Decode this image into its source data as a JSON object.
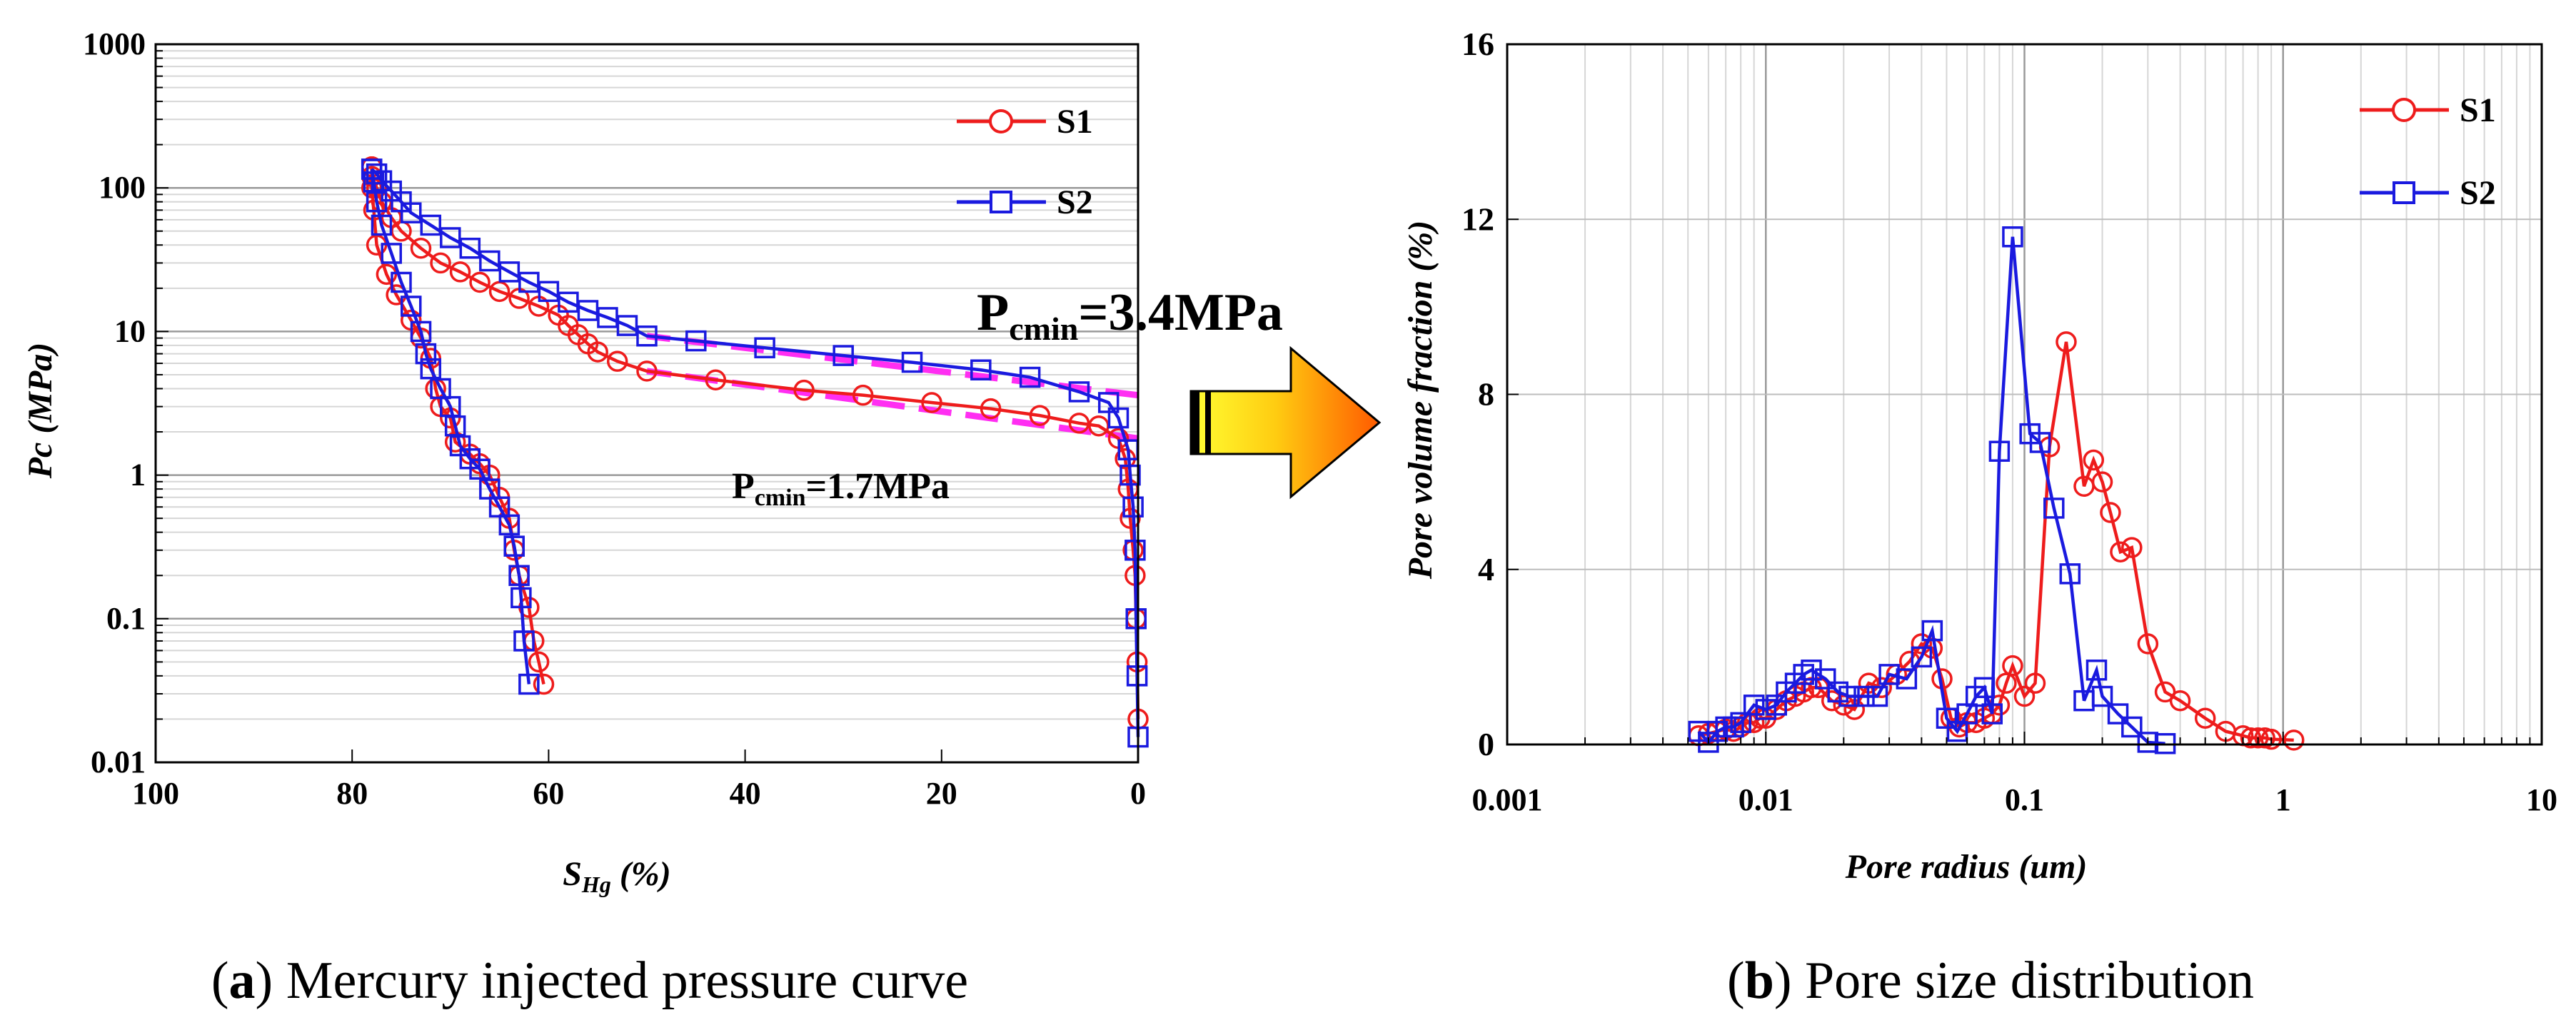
{
  "colors": {
    "s1": "#ee1c1c",
    "s2": "#1a1adf",
    "dash": "#ff2ef2",
    "axis": "#000000"
  },
  "panels": {
    "a": {
      "caption_letter": "a",
      "caption": " Mercury injected pressure curve"
    },
    "b": {
      "caption_letter": "b",
      "caption": " Pore size distribution"
    }
  },
  "annotations": {
    "pcmin_s2": {
      "main": "P",
      "sub": "cmin",
      "value": "=3.4MPa"
    },
    "pcmin_s1": {
      "main": "P",
      "sub": "cmin",
      "value": "=1.7MPa"
    },
    "arrow": "arrow-right-icon"
  },
  "chart_data": [
    {
      "type": "line",
      "xlabel": {
        "main": "S",
        "sub": "Hg",
        "unit": " (%)"
      },
      "ylabel": "Pc (MPa)",
      "xlim": [
        100,
        0
      ],
      "ylim": [
        0.01,
        1000
      ],
      "yscale": "log",
      "grid": true,
      "legend": "top-right",
      "xticks": [
        "100",
        "80",
        "60",
        "40",
        "20",
        "0"
      ],
      "yticks": [
        "0.01",
        "0.1",
        "1",
        "10",
        "100",
        "1000"
      ],
      "series": [
        {
          "name": "S1",
          "marker": "circle",
          "injection": [
            [
              0,
              0.02
            ],
            [
              0.1,
              0.05
            ],
            [
              0.2,
              0.1
            ],
            [
              0.3,
              0.2
            ],
            [
              0.5,
              0.3
            ],
            [
              0.8,
              0.5
            ],
            [
              1,
              0.8
            ],
            [
              1.3,
              1.3
            ],
            [
              2,
              1.8
            ],
            [
              4,
              2.2
            ],
            [
              6,
              2.3
            ],
            [
              10,
              2.6
            ],
            [
              15,
              2.9
            ],
            [
              21,
              3.2
            ],
            [
              28,
              3.6
            ],
            [
              34,
              3.9
            ],
            [
              43,
              4.6
            ],
            [
              50,
              5.3
            ],
            [
              53,
              6.2
            ],
            [
              55,
              7.2
            ],
            [
              56,
              8.2
            ],
            [
              57,
              9.5
            ],
            [
              58,
              11
            ],
            [
              59,
              13
            ],
            [
              61,
              15
            ],
            [
              63,
              17
            ],
            [
              65,
              19
            ],
            [
              67,
              22
            ],
            [
              69,
              26
            ],
            [
              71,
              30
            ],
            [
              73,
              38
            ],
            [
              75,
              50
            ],
            [
              76,
              62
            ],
            [
              77,
              80
            ],
            [
              77.5,
              100
            ],
            [
              78,
              120
            ],
            [
              78,
              140
            ]
          ],
          "withdrawal": [
            [
              78,
              140
            ],
            [
              78,
              100
            ],
            [
              77.8,
              70
            ],
            [
              77.5,
              40
            ],
            [
              76.5,
              25
            ],
            [
              75.5,
              18
            ],
            [
              74,
              12
            ],
            [
              73,
              9
            ],
            [
              72,
              6.5
            ],
            [
              71.5,
              4
            ],
            [
              71,
              3
            ],
            [
              70,
              2.5
            ],
            [
              69.5,
              1.7
            ],
            [
              68,
              1.4
            ],
            [
              67,
              1.2
            ],
            [
              66,
              1
            ],
            [
              65,
              0.7
            ],
            [
              64,
              0.5
            ],
            [
              63.5,
              0.3
            ],
            [
              63,
              0.2
            ],
            [
              62,
              0.12
            ],
            [
              61.5,
              0.07
            ],
            [
              61,
              0.05
            ],
            [
              60.5,
              0.035
            ]
          ]
        },
        {
          "name": "S2",
          "marker": "square",
          "injection": [
            [
              0,
              0.015
            ],
            [
              0.1,
              0.04
            ],
            [
              0.2,
              0.1
            ],
            [
              0.3,
              0.3
            ],
            [
              0.5,
              0.6
            ],
            [
              0.8,
              1
            ],
            [
              1,
              1.5
            ],
            [
              2,
              2.5
            ],
            [
              3,
              3.2
            ],
            [
              6,
              3.8
            ],
            [
              11,
              4.8
            ],
            [
              16,
              5.4
            ],
            [
              23,
              6.1
            ],
            [
              30,
              6.8
            ],
            [
              38,
              7.7
            ],
            [
              45,
              8.6
            ],
            [
              50,
              9.3
            ],
            [
              52,
              11
            ],
            [
              54,
              12.5
            ],
            [
              56,
              14
            ],
            [
              58,
              16
            ],
            [
              60,
              19
            ],
            [
              62,
              22
            ],
            [
              64,
              26
            ],
            [
              66,
              31
            ],
            [
              68,
              38
            ],
            [
              70,
              45
            ],
            [
              72,
              55
            ],
            [
              74,
              67
            ],
            [
              75,
              80
            ],
            [
              76,
              95
            ],
            [
              77,
              112
            ],
            [
              77.5,
              125
            ],
            [
              78,
              135
            ]
          ],
          "withdrawal": [
            [
              78,
              135
            ],
            [
              77.8,
              110
            ],
            [
              77.5,
              80
            ],
            [
              77,
              55
            ],
            [
              76,
              35
            ],
            [
              75,
              22
            ],
            [
              74,
              15
            ],
            [
              73,
              10
            ],
            [
              72.5,
              7
            ],
            [
              72,
              5.5
            ],
            [
              71,
              4
            ],
            [
              70,
              3
            ],
            [
              69.5,
              2.2
            ],
            [
              69,
              1.6
            ],
            [
              68,
              1.3
            ],
            [
              67,
              1.1
            ],
            [
              66,
              0.8
            ],
            [
              65,
              0.6
            ],
            [
              64,
              0.45
            ],
            [
              63.5,
              0.32
            ],
            [
              63,
              0.2
            ],
            [
              62.8,
              0.14
            ],
            [
              62.5,
              0.07
            ],
            [
              62,
              0.035
            ]
          ]
        }
      ],
      "fit_lines": [
        {
          "x": [
            0,
            50
          ],
          "y": [
            1.8,
            5.3
          ]
        },
        {
          "x": [
            0,
            50
          ],
          "y": [
            3.6,
            9.3
          ]
        }
      ]
    },
    {
      "type": "line",
      "xlabel": "Pore radius (um)",
      "ylabel": "Pore volume fraction (%)",
      "xscale": "log",
      "xlim": [
        0.001,
        10
      ],
      "ylim": [
        0,
        16
      ],
      "grid": true,
      "legend": "top-right",
      "xticks": [
        "0.001",
        "0.01",
        "0.1",
        "1",
        "10"
      ],
      "yticks": [
        "0",
        "4",
        "8",
        "12",
        "16"
      ],
      "series": [
        {
          "name": "S1",
          "marker": "circle",
          "points": [
            [
              0.0055,
              0.2
            ],
            [
              0.006,
              0.25
            ],
            [
              0.0065,
              0.3
            ],
            [
              0.007,
              0.35
            ],
            [
              0.0075,
              0.3
            ],
            [
              0.008,
              0.4
            ],
            [
              0.0085,
              0.5
            ],
            [
              0.009,
              0.5
            ],
            [
              0.0095,
              0.6
            ],
            [
              0.01,
              0.6
            ],
            [
              0.011,
              0.8
            ],
            [
              0.012,
              1
            ],
            [
              0.013,
              1.1
            ],
            [
              0.014,
              1.2
            ],
            [
              0.015,
              1.3
            ],
            [
              0.016,
              1.3
            ],
            [
              0.018,
              1
            ],
            [
              0.02,
              0.9
            ],
            [
              0.022,
              0.8
            ],
            [
              0.025,
              1.4
            ],
            [
              0.028,
              1.3
            ],
            [
              0.032,
              1.6
            ],
            [
              0.036,
              1.9
            ],
            [
              0.04,
              2.3
            ],
            [
              0.044,
              2.2
            ],
            [
              0.048,
              1.5
            ],
            [
              0.052,
              0.6
            ],
            [
              0.056,
              0.4
            ],
            [
              0.06,
              0.5
            ],
            [
              0.065,
              0.5
            ],
            [
              0.07,
              0.6
            ],
            [
              0.075,
              0.7
            ],
            [
              0.08,
              0.9
            ],
            [
              0.085,
              1.4
            ],
            [
              0.09,
              1.8
            ],
            [
              0.1,
              1.1
            ],
            [
              0.11,
              1.4
            ],
            [
              0.125,
              6.8
            ],
            [
              0.145,
              9.2
            ],
            [
              0.17,
              5.9
            ],
            [
              0.185,
              6.5
            ],
            [
              0.2,
              6
            ],
            [
              0.215,
              5.3
            ],
            [
              0.235,
              4.4
            ],
            [
              0.26,
              4.5
            ],
            [
              0.3,
              2.3
            ],
            [
              0.35,
              1.2
            ],
            [
              0.4,
              1
            ],
            [
              0.5,
              0.6
            ],
            [
              0.6,
              0.3
            ],
            [
              0.7,
              0.2
            ],
            [
              0.75,
              0.15
            ],
            [
              0.8,
              0.15
            ],
            [
              0.85,
              0.15
            ],
            [
              0.9,
              0.12
            ],
            [
              1.1,
              0.1
            ]
          ]
        },
        {
          "name": "S2",
          "marker": "square",
          "points": [
            [
              0.0055,
              0.3
            ],
            [
              0.006,
              0.05
            ],
            [
              0.0065,
              0.3
            ],
            [
              0.007,
              0.4
            ],
            [
              0.0075,
              0.4
            ],
            [
              0.008,
              0.5
            ],
            [
              0.009,
              0.9
            ],
            [
              0.01,
              0.8
            ],
            [
              0.011,
              0.9
            ],
            [
              0.012,
              1.2
            ],
            [
              0.013,
              1.4
            ],
            [
              0.014,
              1.6
            ],
            [
              0.015,
              1.7
            ],
            [
              0.017,
              1.5
            ],
            [
              0.019,
              1.2
            ],
            [
              0.021,
              1.1
            ],
            [
              0.024,
              1.1
            ],
            [
              0.027,
              1.1
            ],
            [
              0.03,
              1.6
            ],
            [
              0.035,
              1.5
            ],
            [
              0.04,
              2
            ],
            [
              0.044,
              2.6
            ],
            [
              0.05,
              0.6
            ],
            [
              0.055,
              0.3
            ],
            [
              0.06,
              0.7
            ],
            [
              0.065,
              1.1
            ],
            [
              0.07,
              1.3
            ],
            [
              0.075,
              0.7
            ],
            [
              0.08,
              6.7
            ],
            [
              0.09,
              11.6
            ],
            [
              0.105,
              7.1
            ],
            [
              0.115,
              6.9
            ],
            [
              0.13,
              5.4
            ],
            [
              0.15,
              3.9
            ],
            [
              0.17,
              1
            ],
            [
              0.19,
              1.7
            ],
            [
              0.2,
              1.1
            ],
            [
              0.23,
              0.7
            ],
            [
              0.26,
              0.4
            ],
            [
              0.3,
              0.05
            ],
            [
              0.35,
              0.02
            ]
          ]
        }
      ]
    }
  ]
}
